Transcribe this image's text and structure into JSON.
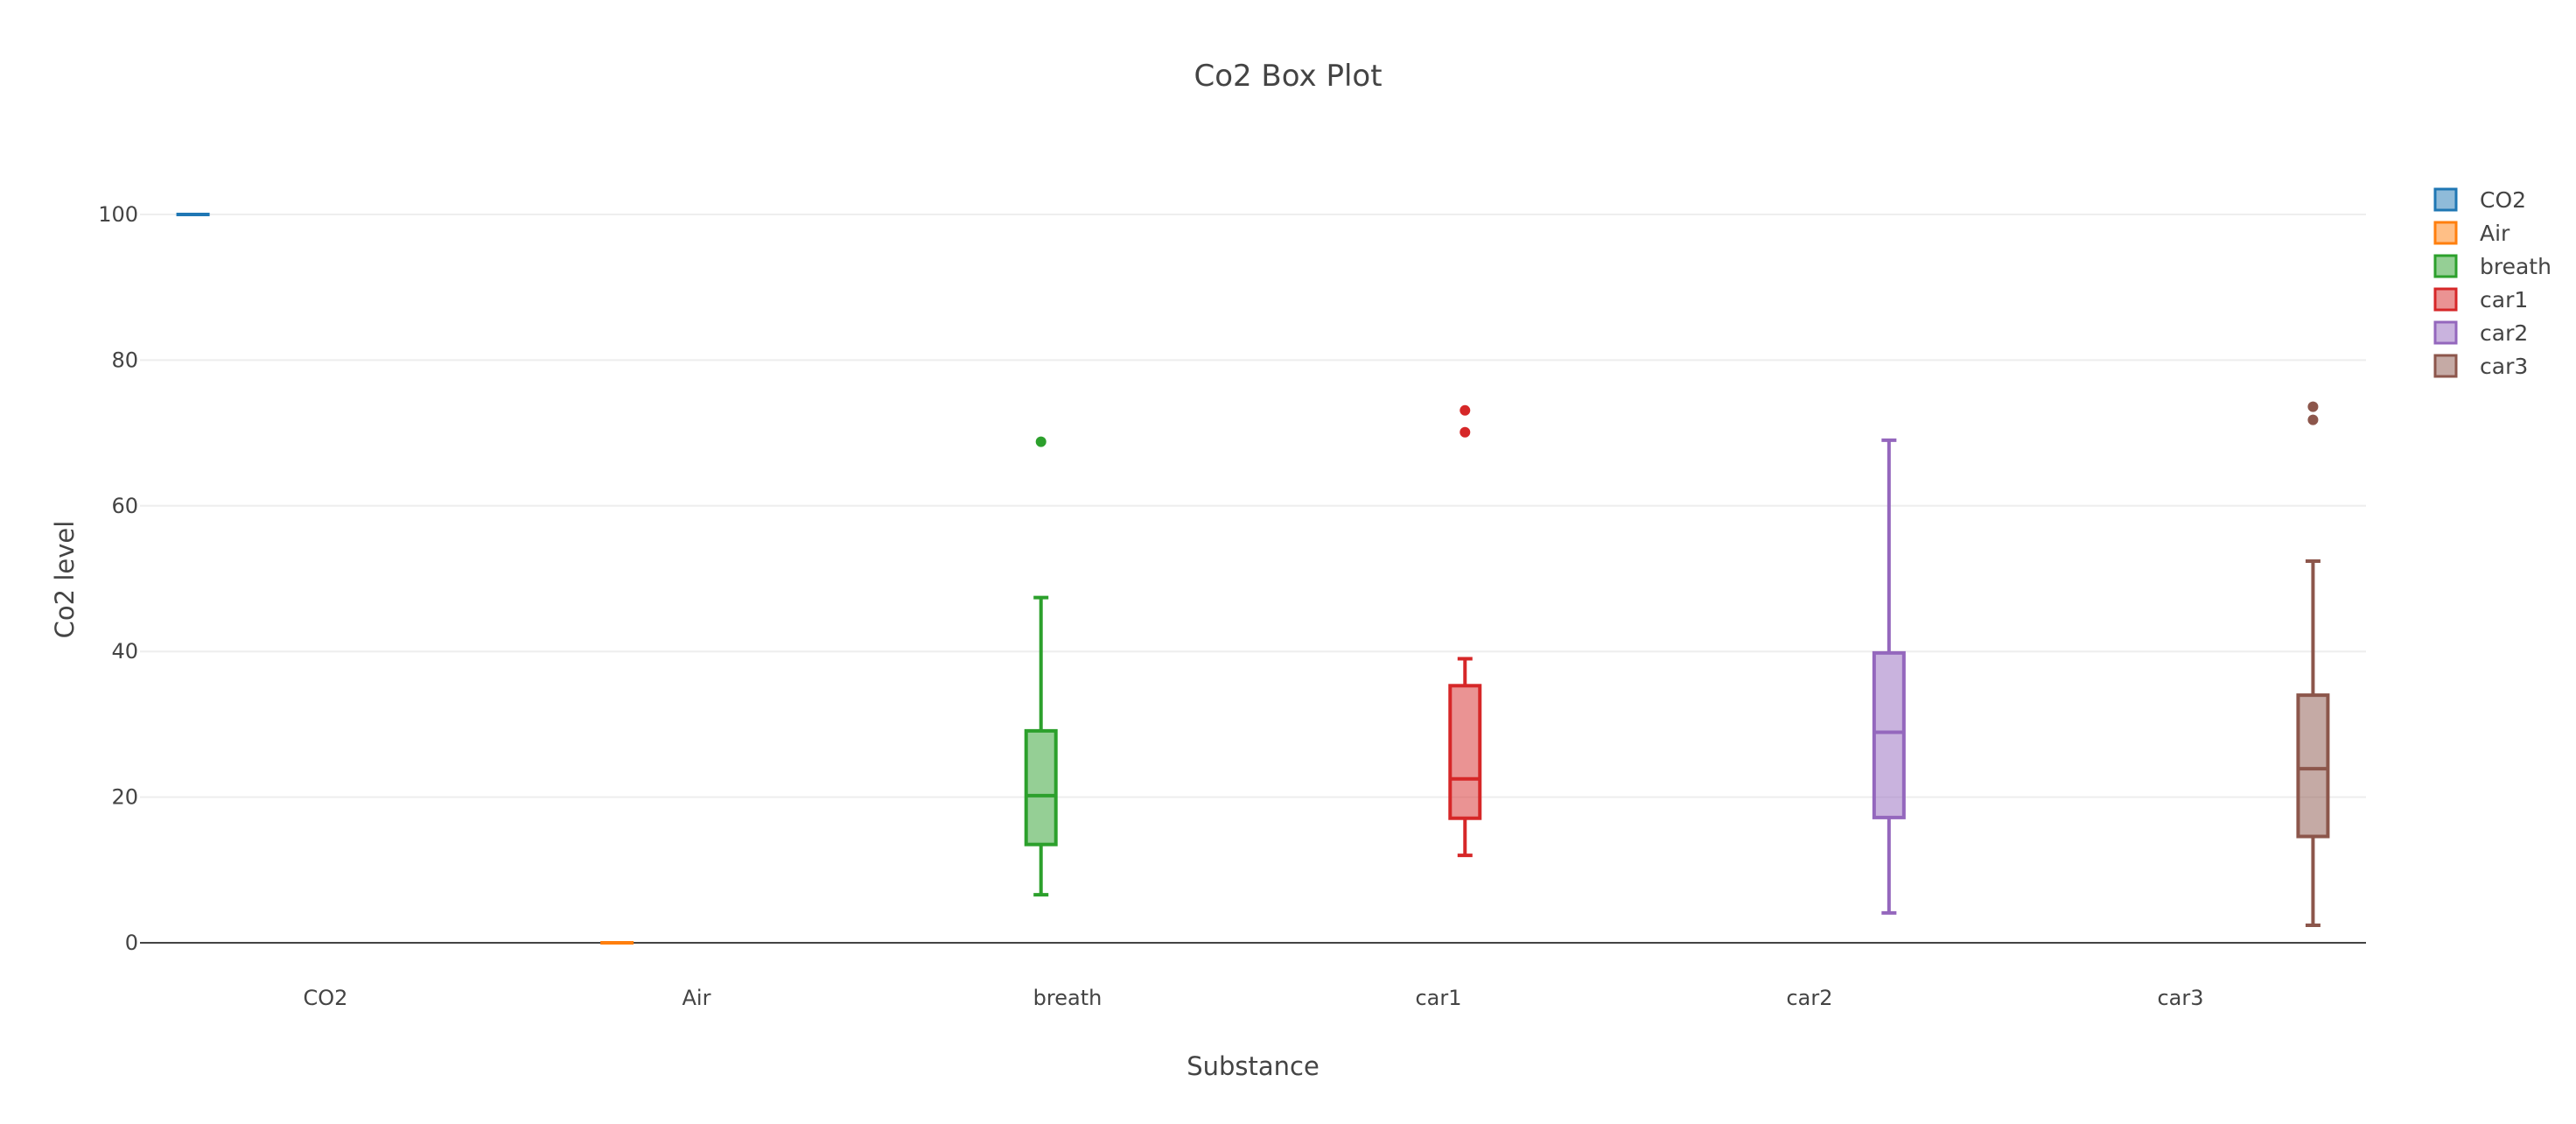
{
  "chart_data": {
    "type": "box",
    "title": "Co2 Box Plot",
    "xlabel": "Substance",
    "ylabel": "Co2 level",
    "ylim": [
      -2,
      110
    ],
    "yticks": [
      0,
      20,
      40,
      60,
      80,
      100
    ],
    "grid": true,
    "legend_position": "right",
    "categories": [
      "CO2",
      "Air",
      "breath",
      "car1",
      "car2",
      "car3"
    ],
    "series": [
      {
        "name": "CO2",
        "color": "#1f77b4",
        "min": 100,
        "q1": 100,
        "median": 100,
        "q3": 100,
        "max": 100,
        "outliers": []
      },
      {
        "name": "Air",
        "color": "#ff7f0e",
        "min": 0,
        "q1": 0,
        "median": 0,
        "q3": 0,
        "max": 0,
        "outliers": []
      },
      {
        "name": "breath",
        "color": "#2ca02c",
        "min": 6.6,
        "q1": 13.5,
        "median": 20.2,
        "q3": 29.1,
        "max": 47.4,
        "outliers": [
          68.8
        ]
      },
      {
        "name": "car1",
        "color": "#d62728",
        "min": 12.0,
        "q1": 17.1,
        "median": 22.5,
        "q3": 35.3,
        "max": 39.0,
        "outliers": [
          73.1,
          70.1
        ]
      },
      {
        "name": "car2",
        "color": "#9467bd",
        "min": 4.1,
        "q1": 17.2,
        "median": 28.9,
        "q3": 39.8,
        "max": 69.0,
        "outliers": []
      },
      {
        "name": "car3",
        "color": "#8c564b",
        "min": 2.4,
        "q1": 14.6,
        "median": 23.9,
        "q3": 34.0,
        "max": 52.4,
        "outliers": [
          73.6,
          71.8
        ]
      }
    ]
  }
}
